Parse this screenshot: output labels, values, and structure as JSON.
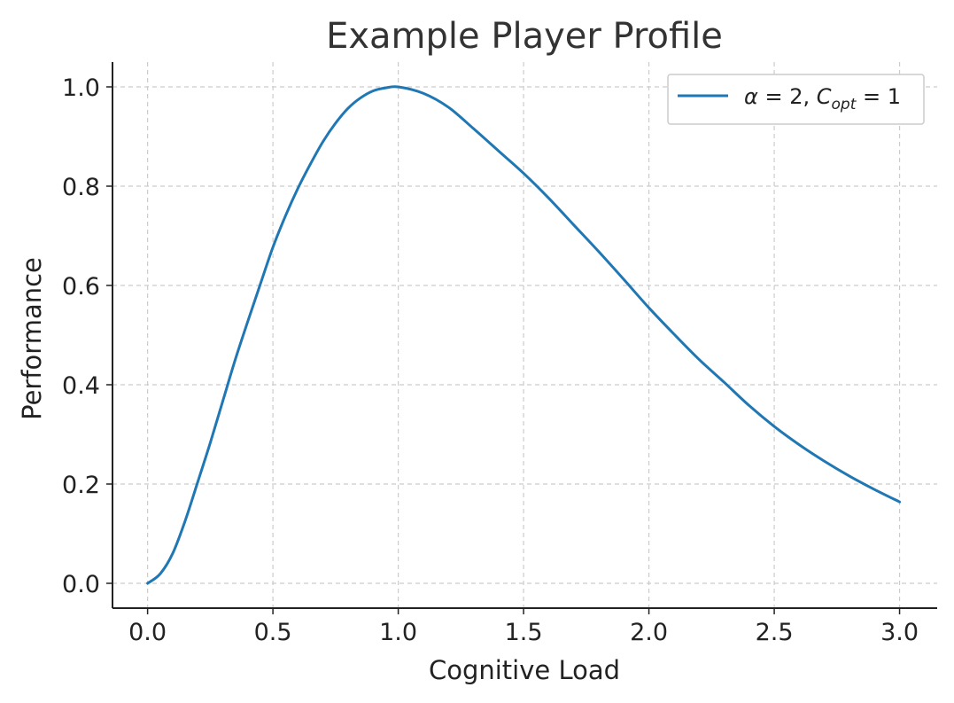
{
  "chart_data": {
    "type": "line",
    "title": "Example Player Profile",
    "xlabel": "Cognitive Load",
    "ylabel": "Performance",
    "xlim": [
      -0.14,
      3.15
    ],
    "ylim": [
      -0.05,
      1.05
    ],
    "x_ticks": [
      0.0,
      0.5,
      1.0,
      1.5,
      2.0,
      2.5,
      3.0
    ],
    "x_tick_labels": [
      "0.0",
      "0.5",
      "1.0",
      "1.5",
      "2.0",
      "2.5",
      "3.0"
    ],
    "y_ticks": [
      0.0,
      0.2,
      0.4,
      0.6,
      0.8,
      1.0
    ],
    "y_tick_labels": [
      "0.0",
      "0.2",
      "0.4",
      "0.6",
      "0.8",
      "1.0"
    ],
    "grid": true,
    "legend_position": "top-right",
    "series": [
      {
        "name": "α = 2, C_opt = 1",
        "color": "#1f77b4",
        "x": [
          0.0,
          0.05,
          0.1,
          0.15,
          0.2,
          0.25,
          0.3,
          0.35,
          0.4,
          0.45,
          0.5,
          0.55,
          0.6,
          0.65,
          0.7,
          0.75,
          0.8,
          0.85,
          0.9,
          0.95,
          1.0,
          1.1,
          1.2,
          1.3,
          1.4,
          1.5,
          1.6,
          1.7,
          1.8,
          1.9,
          2.0,
          2.1,
          2.2,
          2.3,
          2.4,
          2.5,
          2.6,
          2.7,
          2.8,
          2.9,
          3.0
        ],
        "y": [
          0.0,
          0.019,
          0.06,
          0.126,
          0.204,
          0.283,
          0.367,
          0.451,
          0.528,
          0.603,
          0.677,
          0.74,
          0.796,
          0.845,
          0.89,
          0.927,
          0.957,
          0.978,
          0.992,
          0.998,
          1.0,
          0.987,
          0.959,
          0.916,
          0.871,
          0.826,
          0.776,
          0.722,
          0.668,
          0.612,
          0.555,
          0.502,
          0.451,
          0.405,
          0.358,
          0.316,
          0.279,
          0.246,
          0.216,
          0.189,
          0.164
        ]
      }
    ]
  }
}
